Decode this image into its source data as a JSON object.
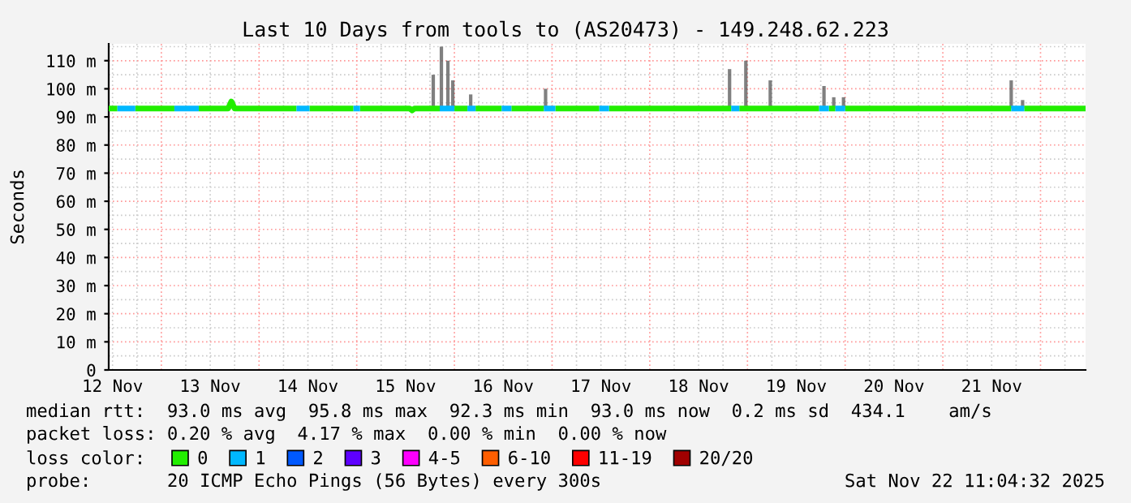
{
  "chart_data": {
    "type": "line",
    "title": "Last 10 Days from tools to (AS20473) - 149.248.62.223",
    "ylabel": "Seconds",
    "legend_title": "loss color:",
    "xlim": [
      "2025-11-12T11:04",
      "2025-11-22T11:04"
    ],
    "xticks": [
      {
        "value": "2025-11-12T12:00",
        "label": "12 Nov"
      },
      {
        "value": "2025-11-13T12:00",
        "label": "13 Nov"
      },
      {
        "value": "2025-11-14T12:00",
        "label": "14 Nov"
      },
      {
        "value": "2025-11-15T12:00",
        "label": "15 Nov"
      },
      {
        "value": "2025-11-16T12:00",
        "label": "16 Nov"
      },
      {
        "value": "2025-11-17T12:00",
        "label": "17 Nov"
      },
      {
        "value": "2025-11-18T12:00",
        "label": "18 Nov"
      },
      {
        "value": "2025-11-19T12:00",
        "label": "19 Nov"
      },
      {
        "value": "2025-11-20T12:00",
        "label": "20 Nov"
      },
      {
        "value": "2025-11-21T12:00",
        "label": "21 Nov"
      }
    ],
    "ylim": [
      0,
      116
    ],
    "yticks": [
      0,
      {
        "value": 10,
        "label": "10 m"
      },
      {
        "value": 20,
        "label": "20 m"
      },
      {
        "value": 30,
        "label": "30 m"
      },
      {
        "value": 40,
        "label": "40 m"
      },
      {
        "value": 50,
        "label": "50 m"
      },
      {
        "value": 60,
        "label": "60 m"
      },
      {
        "value": 70,
        "label": "70 m"
      },
      {
        "value": 80,
        "label": "80 m"
      },
      {
        "value": 90,
        "label": "90 m"
      },
      {
        "value": 100,
        "label": "100 m"
      },
      {
        "value": 110,
        "label": "110 m"
      }
    ],
    "grid": true,
    "legend": "bottom",
    "marker": "none",
    "line_style": "solid",
    "series": [
      {
        "type": "bar",
        "color": "#555555",
        "x": [
          "2025-11-15T18:48",
          "2025-11-15T20:48",
          "2025-11-15T22:24",
          "2025-11-15T23:36",
          "2025-11-16T04:00",
          "2025-11-16T22:24",
          "2025-11-18T19:36",
          "2025-11-18T23:36",
          "2025-11-19T05:36",
          "2025-11-19T18:48",
          "2025-11-19T21:12",
          "2025-11-19T23:36",
          "2025-11-21T16:48",
          "2025-11-21T19:36"
        ],
        "base": [
          93,
          93,
          93,
          93,
          93,
          93,
          93,
          93,
          93,
          93,
          93,
          93,
          93,
          93
        ],
        "values": [
          12,
          22,
          17,
          10,
          5,
          7,
          14,
          17,
          10,
          8,
          4,
          4,
          10,
          3
        ]
      },
      {
        "name": "0",
        "color": "#22ee00",
        "x": [
          "2025-11-12T11:04",
          "2025-11-12T13:12",
          "2025-11-12T15:00",
          "2025-11-12T17:36",
          "2025-11-13T03:12",
          "2025-11-13T06:00",
          "2025-11-13T09:12",
          "2025-11-13T16:24",
          "2025-11-13T17:12",
          "2025-11-13T18:00",
          "2025-11-14T09:12",
          "2025-11-14T11:00",
          "2025-11-14T12:24",
          "2025-11-14T23:12",
          "2025-11-15T00:00",
          "2025-11-15T00:48",
          "2025-11-15T13:00",
          "2025-11-15T13:36",
          "2025-11-15T14:12",
          "2025-11-15T20:24",
          "2025-11-15T22:00",
          "2025-11-16T00:00",
          "2025-11-16T03:12",
          "2025-11-16T04:00",
          "2025-11-16T05:12",
          "2025-11-16T11:36",
          "2025-11-16T13:00",
          "2025-11-16T14:00",
          "2025-11-16T22:00",
          "2025-11-16T23:00",
          "2025-11-17T00:48",
          "2025-11-17T11:36",
          "2025-11-17T13:00",
          "2025-11-17T14:00",
          "2025-11-18T20:00",
          "2025-11-18T21:00",
          "2025-11-18T22:00",
          "2025-11-19T17:36",
          "2025-11-19T19:00",
          "2025-11-19T20:00",
          "2025-11-19T21:36",
          "2025-11-19T23:00",
          "2025-11-20T00:00",
          "2025-11-21T16:48",
          "2025-11-21T18:00",
          "2025-11-21T20:00",
          "2025-11-22T11:04"
        ],
        "values": [
          93,
          93,
          null,
          93,
          93,
          null,
          93,
          93,
          95.5,
          93,
          93,
          null,
          93,
          93,
          null,
          93,
          93,
          92.3,
          93,
          93,
          null,
          93,
          93,
          null,
          93,
          93,
          null,
          93,
          93,
          null,
          93,
          93,
          null,
          93,
          93,
          null,
          93,
          93,
          null,
          93,
          93,
          null,
          93,
          93,
          null,
          93,
          93
        ]
      },
      {
        "name": "1",
        "color": "#00b8ff",
        "x": [
          "2025-11-12T13:12",
          "2025-11-12T17:36",
          "2025-11-13T00:00",
          "2025-11-13T03:12",
          "2025-11-13T09:12",
          "2025-11-13T12:00",
          "2025-11-14T09:12",
          "2025-11-14T12:24",
          "2025-11-14T18:00",
          "2025-11-14T23:12",
          "2025-11-15T00:48",
          "2025-11-15T06:00",
          "2025-11-15T20:24",
          "2025-11-16T00:00",
          "2025-11-16T02:00",
          "2025-11-16T03:12",
          "2025-11-16T05:12",
          "2025-11-16T08:00",
          "2025-11-16T11:36",
          "2025-11-16T14:00",
          "2025-11-16T18:00",
          "2025-11-16T22:00",
          "2025-11-17T00:48",
          "2025-11-17T06:00",
          "2025-11-17T11:36",
          "2025-11-17T14:00",
          "2025-11-18T06:00",
          "2025-11-18T20:00",
          "2025-11-18T22:00",
          "2025-11-19T06:00",
          "2025-11-19T17:36",
          "2025-11-19T20:00",
          "2025-11-19T21:00",
          "2025-11-19T21:36",
          "2025-11-20T00:00",
          "2025-11-21T06:00",
          "2025-11-21T16:48",
          "2025-11-21T20:00"
        ],
        "values": [
          93,
          93,
          null,
          93,
          93,
          null,
          93,
          93,
          null,
          93,
          93,
          null,
          93,
          93,
          null,
          93,
          93,
          null,
          93,
          93,
          null,
          93,
          93,
          null,
          93,
          93,
          null,
          93,
          93,
          null,
          93,
          93,
          null,
          93,
          93,
          null,
          93,
          93
        ]
      },
      {
        "name": "2",
        "color": "#0059ff"
      },
      {
        "name": "3",
        "color": "#5e00ff"
      },
      {
        "name": "4-5",
        "color": "#ff00ff"
      },
      {
        "name": "6-10",
        "color": "#ff5e00"
      },
      {
        "name": "11-19",
        "color": "#ff0000"
      },
      {
        "name": "20/20",
        "color": "#a00000"
      }
    ],
    "annotations": [
      "median rtt:  93.0 ms avg  95.8 ms max  92.3 ms min  93.0 ms now  0.2 ms sd  434.1    am/s",
      "packet loss: 0.20 % avg  4.17 % max  0.00 % min  0.00 % now",
      "probe:       20 ICMP Echo Pings (56 Bytes) every 300s",
      "Sat Nov 22 11:04:32 2025"
    ]
  }
}
